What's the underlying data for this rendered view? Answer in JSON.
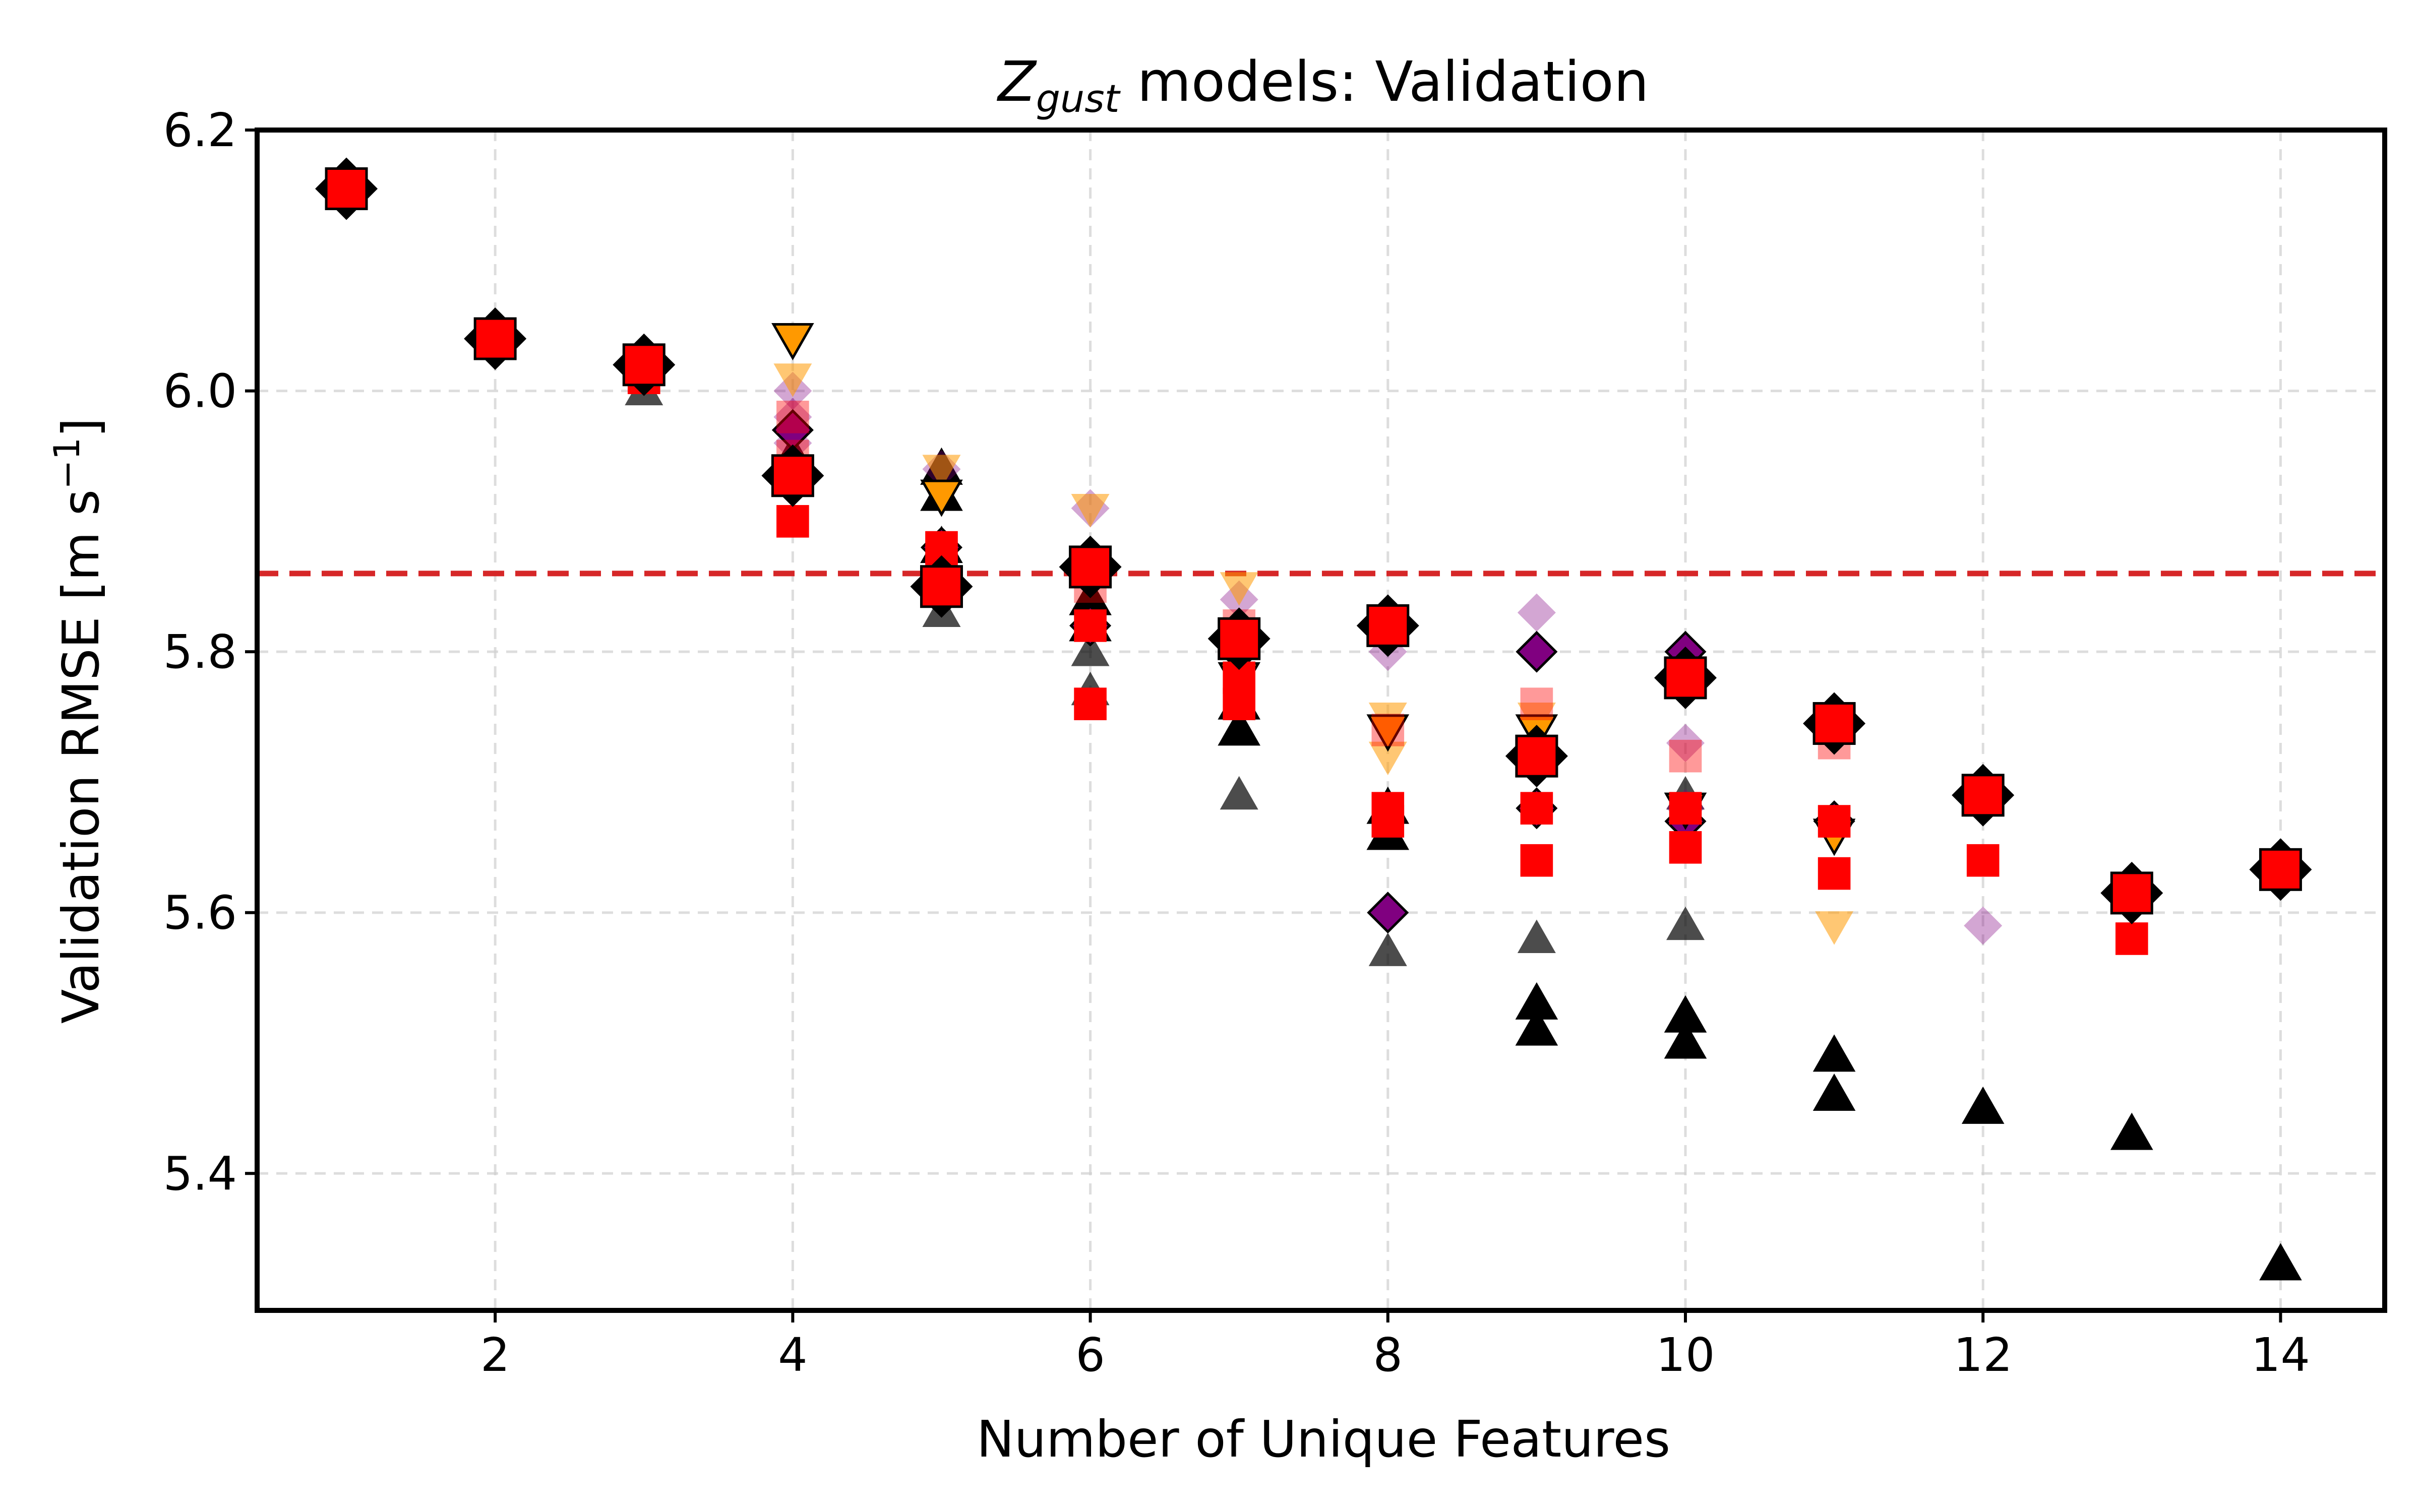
{
  "chart_data": {
    "type": "scatter",
    "title_main": "Z",
    "title_sub": "gust",
    "title_rest": " models: Validation",
    "xlabel": "Number of Unique Features",
    "ylabel_main": "Validation RMSE [m s",
    "ylabel_sup": "−1",
    "ylabel_end": "]",
    "xlim": [
      0.4,
      14.7
    ],
    "ylim": [
      5.295,
      6.2
    ],
    "xticks": [
      2,
      4,
      6,
      8,
      10,
      12,
      14
    ],
    "yticks": [
      5.4,
      5.6,
      5.8,
      6.0,
      6.2
    ],
    "ytick_labels": [
      "5.4",
      "5.6",
      "5.8",
      "6.0",
      "6.2"
    ],
    "grid": true,
    "reference_line": {
      "y": 5.86,
      "style": "dashed",
      "color": "#d62728"
    },
    "series": [
      {
        "marker": "triangle-up",
        "color": "#000000",
        "alpha": 0.7,
        "points": [
          [
            1,
            6.15
          ],
          [
            2,
            6.04
          ],
          [
            3,
            6.0
          ],
          [
            4,
            5.94
          ],
          [
            5,
            5.83
          ],
          [
            5,
            5.87
          ],
          [
            6,
            5.77
          ],
          [
            6,
            5.8
          ],
          [
            6,
            5.84
          ],
          [
            7,
            5.69
          ],
          [
            8,
            5.57
          ],
          [
            9,
            5.58
          ],
          [
            10,
            5.59
          ],
          [
            10,
            5.69
          ]
        ]
      },
      {
        "marker": "triangle-up",
        "color": "#000000",
        "alpha": 1.0,
        "points": [
          [
            1,
            6.16
          ],
          [
            2,
            6.04
          ],
          [
            3,
            6.02
          ],
          [
            4,
            5.95
          ],
          [
            4,
            5.94
          ],
          [
            5,
            5.94
          ],
          [
            5,
            5.92
          ],
          [
            5,
            5.88
          ],
          [
            6,
            5.84
          ],
          [
            6,
            5.82
          ],
          [
            7,
            5.76
          ],
          [
            7,
            5.74
          ],
          [
            8,
            5.68
          ],
          [
            8,
            5.66
          ],
          [
            9,
            5.53
          ],
          [
            9,
            5.51
          ],
          [
            10,
            5.52
          ],
          [
            10,
            5.5
          ],
          [
            11,
            5.49
          ],
          [
            11,
            5.46
          ],
          [
            12,
            5.45
          ],
          [
            13,
            5.43
          ],
          [
            14,
            5.33
          ]
        ]
      },
      {
        "marker": "diamond",
        "color": "#800080",
        "alpha": 0.35,
        "points": [
          [
            4,
            6.0
          ],
          [
            4,
            5.98
          ],
          [
            4,
            5.96
          ],
          [
            5,
            5.94
          ],
          [
            6,
            5.91
          ],
          [
            7,
            5.84
          ],
          [
            8,
            5.8
          ],
          [
            9,
            5.83
          ],
          [
            9,
            5.72
          ],
          [
            10,
            5.73
          ],
          [
            10,
            5.68
          ],
          [
            11,
            5.67
          ],
          [
            12,
            5.59
          ]
        ]
      },
      {
        "marker": "diamond",
        "color": "#800080",
        "alpha": 1.0,
        "points": [
          [
            4,
            5.97
          ],
          [
            5,
            5.88
          ],
          [
            6,
            5.82
          ],
          [
            7,
            5.8
          ],
          [
            8,
            5.82
          ],
          [
            8,
            5.6
          ],
          [
            9,
            5.8
          ],
          [
            9,
            5.68
          ],
          [
            10,
            5.8
          ],
          [
            10,
            5.67
          ],
          [
            11,
            5.67
          ]
        ]
      },
      {
        "marker": "triangle-down",
        "color": "#ff9900",
        "alpha": 0.55,
        "points": [
          [
            4,
            6.01
          ],
          [
            5,
            5.94
          ],
          [
            6,
            5.91
          ],
          [
            7,
            5.85
          ],
          [
            8,
            5.75
          ],
          [
            8,
            5.72
          ],
          [
            9,
            5.75
          ],
          [
            11,
            5.59
          ]
        ]
      },
      {
        "marker": "triangle-down",
        "color": "#ff9900",
        "alpha": 1.0,
        "points": [
          [
            4,
            6.04
          ],
          [
            5,
            5.92
          ],
          [
            7,
            5.78
          ],
          [
            8,
            5.74
          ],
          [
            9,
            5.74
          ],
          [
            10,
            5.68
          ],
          [
            11,
            5.66
          ]
        ]
      },
      {
        "marker": "square",
        "color": "#ff0000",
        "alpha": 0.4,
        "points": [
          [
            4,
            5.98
          ],
          [
            4,
            5.95
          ],
          [
            6,
            5.85
          ],
          [
            7,
            5.82
          ],
          [
            8,
            5.74
          ],
          [
            9,
            5.76
          ],
          [
            9,
            5.72
          ],
          [
            10,
            5.72
          ],
          [
            11,
            5.73
          ]
        ]
      },
      {
        "marker": "square",
        "color": "#ff0000",
        "alpha": 1.0,
        "points": [
          [
            3,
            6.01
          ],
          [
            4,
            5.9
          ],
          [
            5,
            5.88
          ],
          [
            5,
            5.86
          ],
          [
            6,
            5.76
          ],
          [
            6,
            5.82
          ],
          [
            7,
            5.78
          ],
          [
            7,
            5.76
          ],
          [
            8,
            5.68
          ],
          [
            8,
            5.67
          ],
          [
            9,
            5.68
          ],
          [
            9,
            5.64
          ],
          [
            10,
            5.65
          ],
          [
            10,
            5.68
          ],
          [
            11,
            5.63
          ],
          [
            11,
            5.67
          ],
          [
            12,
            5.64
          ],
          [
            13,
            5.58
          ]
        ]
      },
      {
        "marker": "best",
        "color": "#ff0000",
        "alpha": 1.0,
        "points": [
          [
            1,
            6.155
          ],
          [
            2,
            6.04
          ],
          [
            3,
            6.02
          ],
          [
            4,
            5.935
          ],
          [
            5,
            5.85
          ],
          [
            6,
            5.865
          ],
          [
            7,
            5.81
          ],
          [
            8,
            5.82
          ],
          [
            9,
            5.72
          ],
          [
            10,
            5.78
          ],
          [
            11,
            5.745
          ],
          [
            12,
            5.69
          ],
          [
            13,
            5.615
          ],
          [
            14,
            5.633
          ]
        ]
      }
    ]
  }
}
